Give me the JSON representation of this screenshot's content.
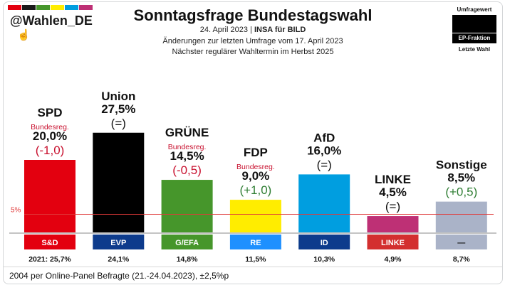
{
  "header": {
    "handle": "@Wahlen_DE",
    "title": "Sonntagsfrage Bundestagswahl",
    "date": "24. April 2023",
    "separator": "|",
    "pollster": "INSA für BILD",
    "changes_line": "Änderungen zur letzten Umfrage vom 17. April 2023",
    "next_election_line": "Nächster regulärer Wahltermin im Herbst 2025",
    "strip_colors": [
      "#e3000f",
      "#1a1a1a",
      "#46962b",
      "#ffed00",
      "#009ee0",
      "#be3075"
    ]
  },
  "legend": {
    "current_label": "Umfragewert",
    "fraction_label": "EP-Fraktion",
    "last_label": "Letzte Wahl"
  },
  "footnote": "2004 per Online-Panel Befragte (21.-24.04.2023), ±2,5%p",
  "chart_data": {
    "type": "bar",
    "title": "Sonntagsfrage Bundestagswahl",
    "ylim": [
      0,
      30
    ],
    "threshold": {
      "value": 5,
      "label": "5%",
      "color": "#e03a3a"
    },
    "categories": [
      "SPD",
      "Union",
      "GRÜNE",
      "FDP",
      "AfD",
      "LINKE",
      "Sonstige"
    ],
    "values": [
      20.0,
      27.5,
      14.5,
      9.0,
      16.0,
      4.5,
      8.5
    ],
    "value_labels": [
      "20,0%",
      "27,5%",
      "14,5%",
      "9,0%",
      "16,0%",
      "4,5%",
      "8,5%"
    ],
    "changes": [
      "(-1,0)",
      "(=)",
      "(-0,5)",
      "(+1,0)",
      "(=)",
      "(=)",
      "(+0,5)"
    ],
    "change_colors": [
      "#c8102e",
      "#111111",
      "#c8102e",
      "#2e7d32",
      "#111111",
      "#111111",
      "#2e7d32"
    ],
    "government_note": [
      "Bundesreg.",
      "",
      "Bundesreg.",
      "Bundesreg.",
      "",
      "",
      ""
    ],
    "bar_colors": [
      "#e3000f",
      "#000000",
      "#46962b",
      "#ffed00",
      "#009ee0",
      "#be3075",
      "#aab3c8"
    ],
    "ep_fractions": [
      "S&D",
      "EVP",
      "G/EFA",
      "RE",
      "ID",
      "LINKE",
      "—"
    ],
    "ep_colors": [
      "#e3000f",
      "#0d3b8c",
      "#46962b",
      "#1e90ff",
      "#0d3b8c",
      "#d32f2f",
      "#aab3c8"
    ],
    "last_election": [
      "2021: 25,7%",
      "24,1%",
      "14,8%",
      "11,5%",
      "10,3%",
      "4,9%",
      "8,7%"
    ]
  }
}
